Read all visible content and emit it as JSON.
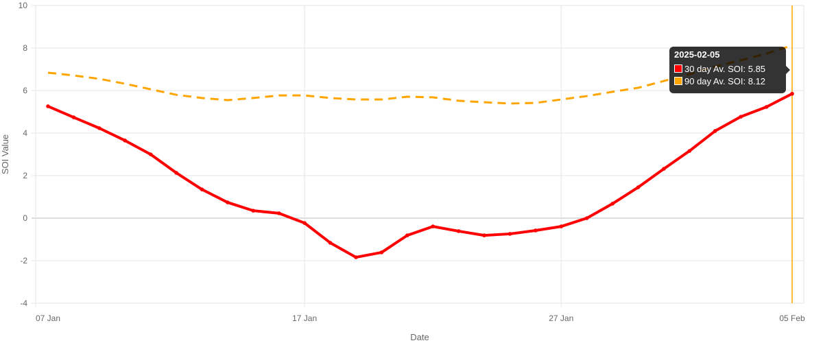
{
  "chart_data": {
    "type": "line",
    "title": "",
    "xlabel": "Date",
    "ylabel": "SOI Value",
    "ylim": [
      -4,
      10
    ],
    "yticks": [
      -4,
      -2,
      0,
      2,
      4,
      6,
      8,
      10
    ],
    "xtick_labels": [
      "07 Jan",
      "17 Jan",
      "27 Jan",
      "05 Feb"
    ],
    "xtick_index": [
      0,
      10,
      20,
      29
    ],
    "x": [
      "2025-01-07",
      "2025-01-08",
      "2025-01-09",
      "2025-01-10",
      "2025-01-11",
      "2025-01-12",
      "2025-01-13",
      "2025-01-14",
      "2025-01-15",
      "2025-01-16",
      "2025-01-17",
      "2025-01-18",
      "2025-01-19",
      "2025-01-20",
      "2025-01-21",
      "2025-01-22",
      "2025-01-23",
      "2025-01-24",
      "2025-01-25",
      "2025-01-26",
      "2025-01-27",
      "2025-01-28",
      "2025-01-29",
      "2025-01-30",
      "2025-01-31",
      "2025-02-01",
      "2025-02-02",
      "2025-02-03",
      "2025-02-04",
      "2025-02-05"
    ],
    "series": [
      {
        "name": "30 day Av. SOI",
        "color": "#ff0000",
        "dashed": false,
        "values": [
          5.26,
          4.74,
          4.23,
          3.65,
          3.0,
          2.13,
          1.35,
          0.74,
          0.35,
          0.23,
          -0.23,
          -1.16,
          -1.84,
          -1.61,
          -0.81,
          -0.39,
          -0.61,
          -0.81,
          -0.74,
          -0.58,
          -0.39,
          0.0,
          0.68,
          1.45,
          2.32,
          3.16,
          4.1,
          4.77,
          5.23,
          5.85
        ]
      },
      {
        "name": "90 day Av. SOI",
        "color": "#ffa500",
        "dashed": true,
        "values": [
          6.84,
          6.71,
          6.55,
          6.32,
          6.06,
          5.8,
          5.65,
          5.55,
          5.65,
          5.77,
          5.77,
          5.65,
          5.58,
          5.58,
          5.71,
          5.68,
          5.52,
          5.45,
          5.39,
          5.42,
          5.58,
          5.74,
          5.94,
          6.13,
          6.45,
          6.77,
          7.13,
          7.42,
          7.74,
          8.12
        ]
      }
    ],
    "grid": true,
    "legend": "none"
  },
  "tooltip": {
    "title": "2025-02-05",
    "rows": [
      "30 day Av. SOI: 5.85",
      "90 day Av. SOI: 8.12"
    ]
  }
}
